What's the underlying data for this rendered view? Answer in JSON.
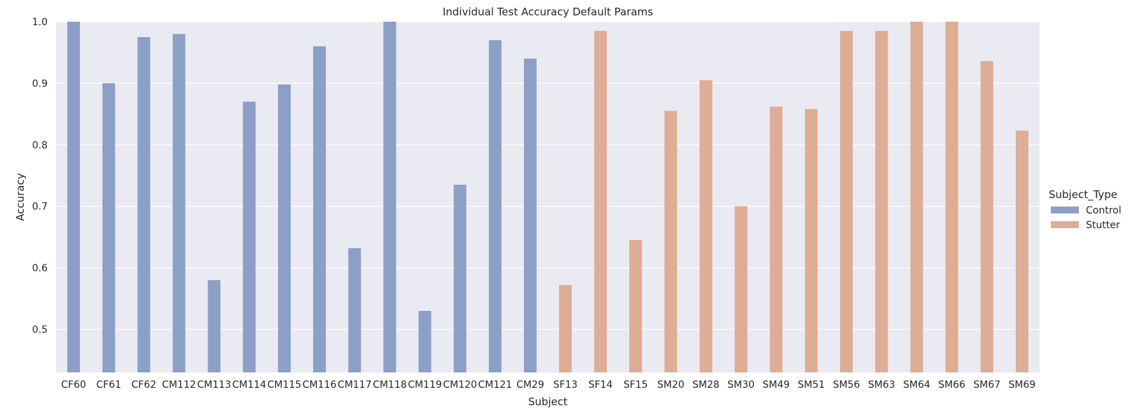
{
  "chart_data": {
    "type": "bar",
    "title": "Individual Test Accuracy Default Params",
    "xlabel": "Subject",
    "ylabel": "Accuracy",
    "ylim": [
      0.43,
      1.0
    ],
    "yticks": [
      0.5,
      0.6,
      0.7,
      0.8,
      0.9,
      1.0
    ],
    "grid": true,
    "legend_position": "right",
    "legend_title": "Subject_Type",
    "categories": [
      "CF60",
      "CF61",
      "CF62",
      "CM112",
      "CM113",
      "CM114",
      "CM115",
      "CM116",
      "CM117",
      "CM118",
      "CM119",
      "CM120",
      "CM121",
      "CM29",
      "SF13",
      "SF14",
      "SF15",
      "SM20",
      "SM28",
      "SM30",
      "SM49",
      "SM51",
      "SM56",
      "SM63",
      "SM64",
      "SM66",
      "SM67",
      "SM69"
    ],
    "series": [
      {
        "name": "Control",
        "color": "#8c9fc6",
        "values": [
          1.0,
          0.9,
          0.975,
          0.98,
          0.58,
          0.87,
          0.898,
          0.96,
          0.632,
          1.0,
          0.53,
          0.735,
          0.97,
          0.94,
          null,
          null,
          null,
          null,
          null,
          null,
          null,
          null,
          null,
          null,
          null,
          null,
          null,
          null
        ]
      },
      {
        "name": "Stutter",
        "color": "#ddad95",
        "values": [
          null,
          null,
          null,
          null,
          null,
          null,
          null,
          null,
          null,
          null,
          null,
          null,
          null,
          null,
          0.572,
          0.985,
          0.645,
          0.855,
          0.905,
          0.7,
          0.862,
          0.858,
          0.985,
          0.985,
          1.0,
          1.0,
          0.936,
          0.823
        ]
      }
    ]
  },
  "style": {
    "plot_background": "#eaeaf2",
    "grid_color": "#ffffff",
    "text_color": "#262626"
  }
}
